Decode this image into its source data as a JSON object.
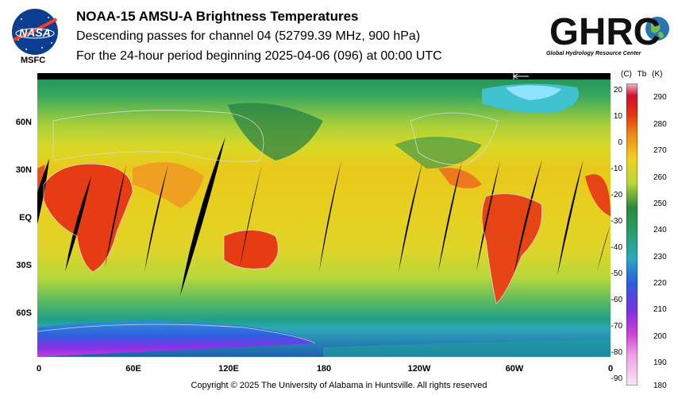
{
  "title": "NOAA-15 AMSU-A Brightness Temperatures",
  "subtitle": "Descending passes for channel 04 (52799.39 MHz, 900 hPa)",
  "period": "For the 24-hour period beginning 2025-04-06 (096) at 00:00 UTC",
  "logo_left": {
    "text": "NASA",
    "label": "MSFC"
  },
  "logo_right": {
    "text": "GHRC",
    "subtitle": "Global Hydrology Resource Center"
  },
  "map": {
    "lat_labels": [
      "60N",
      "30N",
      "EQ",
      "30S",
      "60S"
    ],
    "lon_labels": [
      "0",
      "60E",
      "120E",
      "180",
      "120W",
      "60W",
      "0"
    ]
  },
  "colorbar": {
    "header_c": "(C)",
    "header_tb": "Tb",
    "header_k": "(K)",
    "celsius_ticks": [
      "20",
      "10",
      "0",
      "-10",
      "-20",
      "-30",
      "-40",
      "-50",
      "-60",
      "-70",
      "-80",
      "-90"
    ],
    "kelvin_ticks": [
      "290",
      "280",
      "270",
      "260",
      "250",
      "240",
      "230",
      "220",
      "210",
      "200",
      "190",
      "180"
    ]
  },
  "copyright": "Copyright © 2025 The University of Alabama in Huntsville.  All rights reserved"
}
